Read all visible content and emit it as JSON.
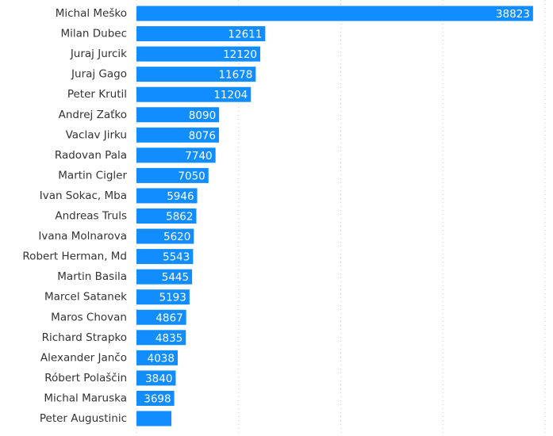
{
  "chart_data": {
    "type": "hbar",
    "categories": [
      "Michal Meško",
      "Milan Dubec",
      "Juraj Jurcik",
      "Juraj Gago",
      "Peter Krutil",
      "Andrej Zaťko",
      "Vaclav Jirku",
      "Radovan Pala",
      "Martin Cigler",
      "Ivan Sokac, Mba",
      "Andreas Truls",
      "Ivana Molnarova",
      "Robert Herman, Md",
      "Martin Basila",
      "Marcel Satanek",
      "Maros Chovan",
      "Richard Strapko",
      "Alexander Jančo",
      "Róbert Polaščin",
      "Michal Maruska",
      "Peter Augustinic"
    ],
    "values": [
      38823,
      12611,
      12120,
      11678,
      11204,
      8090,
      8076,
      7740,
      7050,
      5946,
      5862,
      5620,
      5543,
      5445,
      5193,
      4867,
      4835,
      4038,
      3840,
      3698,
      3420
    ],
    "value_labels": [
      "38823",
      "12611",
      "12120",
      "11678",
      "11204",
      "8090",
      "8076",
      "7740",
      "7050",
      "5946",
      "5862",
      "5620",
      "5543",
      "5445",
      "5193",
      "4867",
      "4835",
      "4038",
      "3840",
      "3698",
      null
    ],
    "color": "#118dff",
    "xlim": [
      0,
      40000
    ],
    "xticks": [
      0,
      10000,
      20000,
      30000,
      40000
    ],
    "grid": true
  }
}
